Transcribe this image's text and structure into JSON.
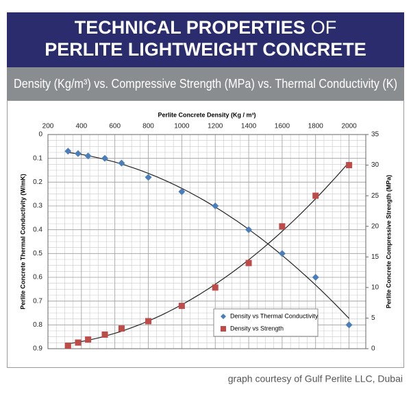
{
  "header": {
    "title_main": "TECHNICAL PROPERTIES",
    "title_of": "OF",
    "title_line2": "PERLITE LIGHTWEIGHT CONCRETE",
    "subtitle": "Density (Kg/m³) vs. Compressive Strength (MPa) vs. Thermal Conductivity (K)"
  },
  "credit": "graph courtesy of Gulf Perlite LLC, Dubai",
  "chart_data": {
    "type": "scatter",
    "xlabel": "Perlite Concrete Density (Kg / m³)",
    "ylabel": "Perlite Concrete Thermal Conductivity (W/mK)",
    "y2label": "Perlite Concrete Compressive Strength (MPa)",
    "xlim": [
      200,
      2100
    ],
    "xticks": [
      200,
      400,
      600,
      800,
      1000,
      1200,
      1400,
      1600,
      1800,
      2000
    ],
    "ylim": [
      0,
      0.9
    ],
    "y_reverse": true,
    "yticks": [
      0,
      0.1,
      0.2,
      0.3,
      0.4,
      0.5,
      0.6,
      0.7,
      0.8,
      0.9
    ],
    "y2lim": [
      0,
      35
    ],
    "y2ticks": [
      0,
      5,
      10,
      15,
      20,
      25,
      30,
      35
    ],
    "grid": true,
    "minor_grid": true,
    "trendline": true,
    "legend": "lower right",
    "series": [
      {
        "name": "Density vs Thermal Conductivity",
        "color": "#4a7ebb",
        "marker": "diamond",
        "x": [
          320,
          380,
          440,
          540,
          640,
          800,
          1000,
          1200,
          1400,
          1600,
          1800,
          2000
        ],
        "values": [
          0.07,
          0.08,
          0.09,
          0.1,
          0.12,
          0.18,
          0.24,
          0.3,
          0.4,
          0.5,
          0.6,
          0.8
        ]
      },
      {
        "name": "Density vs Strength",
        "color": "#be4b48",
        "marker": "square",
        "axis": "y2",
        "x": [
          320,
          380,
          440,
          540,
          640,
          800,
          1000,
          1200,
          1400,
          1600,
          1800,
          2000
        ],
        "values": [
          0.5,
          1,
          1.5,
          2.3,
          3.3,
          4.5,
          7,
          10,
          14,
          20,
          25,
          30
        ]
      }
    ]
  }
}
